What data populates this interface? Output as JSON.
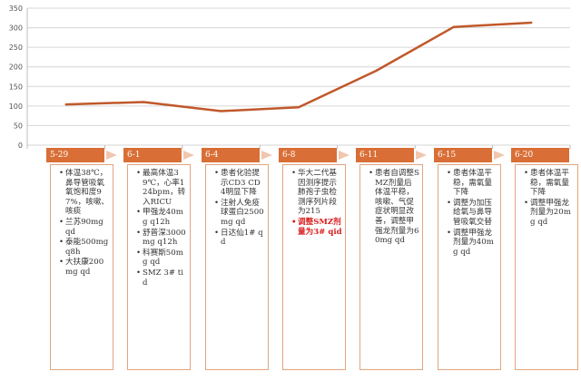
{
  "chart_data": {
    "type": "line",
    "title": "",
    "xlabel": "",
    "ylabel": "",
    "ylim": [
      0,
      350
    ],
    "yticks": [
      0,
      50,
      100,
      150,
      200,
      250,
      300,
      350
    ],
    "grid": true,
    "series": [
      {
        "values": [
          104,
          110,
          87,
          97,
          190,
          302,
          313
        ]
      }
    ],
    "color": "#c0582a"
  },
  "timeline": [
    {
      "date": "5-29",
      "items": [
        {
          "text": "体温38℃，鼻导管吸氧氧饱和度97%，咳嗽、咳痰"
        },
        {
          "text": "兰苏90mg qd"
        },
        {
          "text": "泰能500mg q8h"
        },
        {
          "text": "大扶康200mg qd"
        }
      ]
    },
    {
      "date": "6-1",
      "items": [
        {
          "text": "最高体温39℃，心率124bpm，转入RICU"
        },
        {
          "text": "甲强龙40mg q12h"
        },
        {
          "text": "舒普深3000mg q12h"
        },
        {
          "text": "科赛斯50mg qd"
        },
        {
          "text": "SMZ 3# tid"
        }
      ]
    },
    {
      "date": "6-4",
      "items": [
        {
          "text": "患者化验提示CD3 CD4明显下降"
        },
        {
          "text": "注射人免疫球蛋白2500mg qd"
        },
        {
          "text": "日达仙1# qd"
        }
      ]
    },
    {
      "date": "6-8",
      "items": [
        {
          "text": "华大二代基因测序提示肺孢子虫检测序列片段为215"
        },
        {
          "text": "调整SMZ剂量为3# qid",
          "highlight": true
        }
      ]
    },
    {
      "date": "6-11",
      "items": [
        {
          "text": "患者自调整SMZ剂量后体温平稳，咳嗽、气促症状明显改善，调整甲强龙剂量为60mg qd"
        }
      ]
    },
    {
      "date": "6-15",
      "items": [
        {
          "text": "患者体温平稳，需氧量下降"
        },
        {
          "text": "调整为加压给氧与鼻导管吸氧交替"
        },
        {
          "text": "调整甲强龙剂量为40mg qd"
        }
      ]
    },
    {
      "date": "6-20",
      "items": [
        {
          "text": "患者体温平稳，需氧量下降"
        },
        {
          "text": "调整甲强龙剂量为20mg qd"
        }
      ]
    }
  ],
  "colors": {
    "line": "#c0582a",
    "stage": "#d96f36",
    "arrow": "#f1c6ae",
    "card_border": "#e2a57f",
    "highlight": "#d81e1e"
  }
}
